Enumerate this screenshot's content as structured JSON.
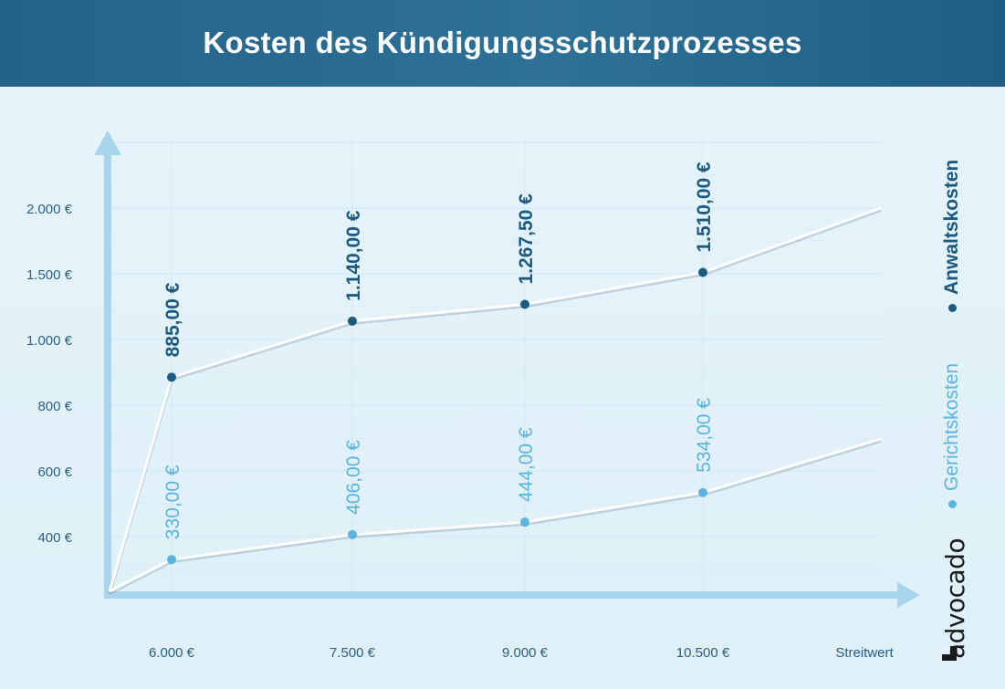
{
  "header": {
    "title": "Kosten des Kündigungsschutzprozesses"
  },
  "legend": {
    "anwalt": "Anwaltskosten",
    "gericht": "Gerichtskosten"
  },
  "brand": "advocado",
  "colors": {
    "anwalt": "#1d5a82",
    "gericht": "#5ab4df",
    "axis": "#a8d4ec",
    "line": "#ffffff"
  },
  "chart_data": {
    "type": "line",
    "title": "Kosten des Kündigungsschutzprozesses",
    "xlabel": "Streitwert",
    "ylabel": "",
    "categories": [
      "6.000 €",
      "7.500 €",
      "9.000 €",
      "10.500 €"
    ],
    "y_ticks": [
      {
        "label": "400 €",
        "value": 400
      },
      {
        "label": "600 €",
        "value": 600
      },
      {
        "label": "800 €",
        "value": 800
      },
      {
        "label": "1.000 €",
        "value": 1000
      },
      {
        "label": "1.500 €",
        "value": 1500
      },
      {
        "label": "2.000 €",
        "value": 2000
      }
    ],
    "series": [
      {
        "name": "Anwaltskosten",
        "values": [
          885,
          1140,
          1267.5,
          1510
        ],
        "labels": [
          "885,00 €",
          "1.140,00 €",
          "1.267,50 €",
          "1.510,00 €"
        ]
      },
      {
        "name": "Gerichtskosten",
        "values": [
          330,
          406,
          444,
          534
        ],
        "labels": [
          "330,00 €",
          "406,00 €",
          "444,00 €",
          "534,00 €"
        ]
      }
    ],
    "grid": true,
    "legend_position": "right"
  }
}
